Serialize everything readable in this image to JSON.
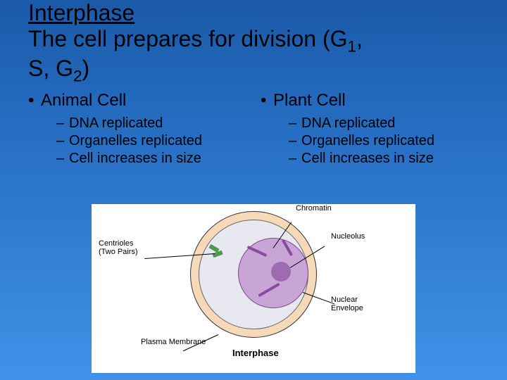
{
  "title": {
    "heading": "Interphase",
    "line1_a": "The cell prepares for division (G",
    "line1_sub1": "1",
    "line1_b": ", ",
    "line2_a": "S, G",
    "line2_sub2": "2",
    "line2_b": ")"
  },
  "columns": {
    "left": {
      "heading": "Animal Cell",
      "items": [
        "DNA replicated",
        "Organelles replicated",
        "Cell increases in size"
      ]
    },
    "right": {
      "heading": "Plant Cell",
      "items": [
        "DNA replicated",
        "Organelles replicated",
        "Cell increases in size"
      ]
    }
  },
  "diagram": {
    "labels": {
      "chromatin": "Chromatin",
      "nucleolus": "Nucleolus",
      "centrioles_l1": "Centrioles",
      "centrioles_l2": "(Two Pairs)",
      "nuclear_l1": "Nuclear",
      "nuclear_l2": "Envelope",
      "plasma": "Plasma Membrane",
      "caption": "Interphase"
    },
    "colors": {
      "background": "#ffffff",
      "cell_outer": "#f5d9b8",
      "cell_inner": "#e8e8f0",
      "nucleus": "#c9a4d6",
      "nucleolus": "#9c6bb0",
      "chromatin": "#8a4aa0",
      "centriole": "#4a9a4a"
    }
  }
}
